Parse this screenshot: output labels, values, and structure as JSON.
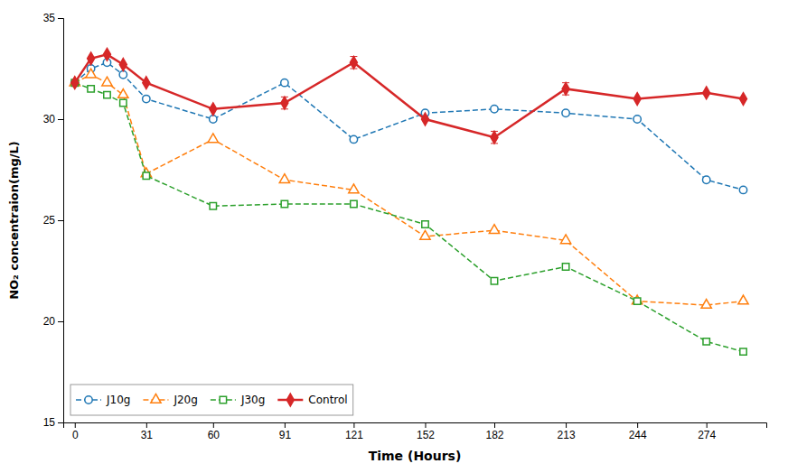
{
  "chart_data": {
    "type": "line",
    "xlabel": "Time (Hours)",
    "ylabel": "NO₂ concentraion(mg/L)",
    "x": [
      0,
      7,
      14,
      21,
      31,
      60,
      91,
      121,
      152,
      182,
      213,
      244,
      274,
      290
    ],
    "xlim": [
      -5,
      300
    ],
    "xticks": [
      0,
      31,
      60,
      91,
      121,
      152,
      182,
      213,
      244,
      274
    ],
    "ylim": [
      15,
      35
    ],
    "yticks": [
      15,
      20,
      25,
      30,
      35
    ],
    "legend": "lower left",
    "series": [
      {
        "name": "J10g",
        "marker": "circle",
        "line_style": "dashed",
        "values": [
          31.8,
          32.5,
          32.8,
          32.2,
          31.0,
          30.0,
          31.8,
          29.0,
          30.3,
          30.5,
          30.3,
          30.0,
          27.0,
          26.5
        ]
      },
      {
        "name": "J20g",
        "marker": "triangle",
        "line_style": "dashed",
        "values": [
          31.8,
          32.2,
          31.8,
          31.2,
          27.3,
          29.0,
          27.0,
          26.5,
          24.2,
          24.5,
          24.0,
          21.0,
          20.8,
          21.0
        ]
      },
      {
        "name": "J30g",
        "marker": "square",
        "line_style": "dashed",
        "values": [
          31.8,
          31.5,
          31.2,
          30.8,
          27.2,
          25.7,
          25.8,
          25.8,
          24.8,
          22.0,
          22.7,
          21.0,
          19.0,
          18.5
        ]
      },
      {
        "name": "Control",
        "marker": "diamond",
        "line_style": "solid",
        "values": [
          31.8,
          33.0,
          33.2,
          32.7,
          31.8,
          30.5,
          30.8,
          32.8,
          30.0,
          29.1,
          31.5,
          31.0,
          31.3,
          31.0
        ],
        "errors": [
          0,
          0,
          0,
          0,
          0,
          0,
          0.3,
          0.3,
          0,
          0.3,
          0.3,
          0,
          0,
          0
        ]
      }
    ]
  }
}
